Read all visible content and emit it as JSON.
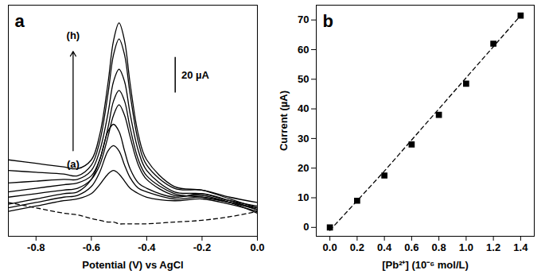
{
  "chart_data": [
    {
      "type": "line",
      "title": "a",
      "x_label": "Potential (V) vs AgCl",
      "annotations": [
        "(a)",
        "(h)"
      ],
      "scale_bar": {
        "value": 20,
        "label": "20 µA"
      },
      "tick_labels": "x",
      "xlim": [
        -0.9,
        0.0
      ],
      "xticks": [
        -0.8,
        -0.6,
        -0.4,
        -0.2,
        {
          "value": 0,
          "label": "0.0"
        }
      ],
      "ylim": [
        0,
        130
      ],
      "x": [
        -0.9,
        -0.8,
        -0.7,
        -0.65,
        -0.6,
        -0.57,
        -0.54,
        -0.52,
        -0.5,
        -0.48,
        -0.46,
        -0.43,
        -0.4,
        -0.3,
        -0.2,
        -0.1,
        0.0
      ],
      "series": [
        {
          "color": "#000000",
          "line_style": "dashed",
          "values": [
            19,
            16,
            13,
            12,
            10,
            9,
            8,
            8,
            7,
            7,
            7,
            7,
            7,
            8,
            9,
            11,
            14
          ]
        },
        {
          "color": "#000000",
          "line_style": "solid",
          "values": [
            14,
            17,
            20,
            21,
            24,
            29,
            35,
            37,
            35,
            31,
            27,
            24,
            22,
            20,
            21,
            18,
            14
          ]
        },
        {
          "color": "#000000",
          "line_style": "solid",
          "values": [
            16,
            19,
            22,
            23,
            28,
            36,
            48,
            51,
            48,
            40,
            33,
            27,
            25,
            21,
            22,
            19,
            16
          ]
        },
        {
          "color": "#000000",
          "line_style": "solid",
          "values": [
            18,
            21,
            24,
            25,
            32,
            43,
            59,
            63,
            59,
            48,
            38,
            30,
            27,
            22,
            24,
            20,
            15
          ]
        },
        {
          "color": "#000000",
          "line_style": "solid",
          "values": [
            22,
            24,
            26,
            27,
            32,
            40,
            56,
            68,
            74,
            68,
            56,
            40,
            32,
            23,
            23,
            19,
            13
          ]
        },
        {
          "color": "#000000",
          "line_style": "solid",
          "values": [
            25,
            27,
            29,
            30,
            34,
            43,
            61,
            76,
            82,
            76,
            61,
            43,
            34,
            24,
            22,
            19,
            15
          ]
        },
        {
          "color": "#000000",
          "line_style": "solid",
          "values": [
            30,
            31,
            32,
            32,
            37,
            48,
            69,
            87,
            94,
            87,
            69,
            48,
            37,
            25,
            24,
            20,
            17
          ]
        },
        {
          "color": "#000000",
          "line_style": "solid",
          "values": [
            37,
            36,
            35,
            34,
            40,
            53,
            80,
            102,
            111,
            102,
            80,
            53,
            40,
            27,
            26,
            22,
            19
          ]
        },
        {
          "color": "#000000",
          "line_style": "solid",
          "values": [
            43,
            41,
            39,
            38,
            43,
            57,
            86,
            110,
            120,
            110,
            86,
            57,
            43,
            28,
            26,
            21,
            16
          ]
        }
      ]
    },
    {
      "type": "scatter",
      "title": "b",
      "x_label": "[Pb²⁺] (10⁻⁶ mol/L)",
      "y_label": "Current (µA)",
      "xlim": [
        -0.1,
        1.5
      ],
      "xticks": [
        {
          "value": 0,
          "label": "0.0"
        },
        0.2,
        0.4,
        0.6,
        0.8,
        {
          "value": 1,
          "label": "1.0"
        },
        1.2,
        1.4
      ],
      "ylim": [
        -3,
        75
      ],
      "yticks": [
        0,
        10,
        20,
        30,
        40,
        50,
        60,
        70
      ],
      "x": [
        0,
        0.2,
        0.4,
        0.6,
        0.8,
        1.0,
        1.2,
        1.4
      ],
      "series": [
        {
          "type": "line",
          "color": "#000000",
          "line_style": "dashed",
          "values": [
            -1,
            9,
            19,
            29.5,
            40,
            50.5,
            61,
            71.5
          ]
        },
        {
          "type": "scatter",
          "color": "#000000",
          "marker": "square",
          "values": [
            0,
            9,
            17.5,
            28,
            38,
            48.5,
            62,
            71.5
          ]
        }
      ]
    }
  ]
}
